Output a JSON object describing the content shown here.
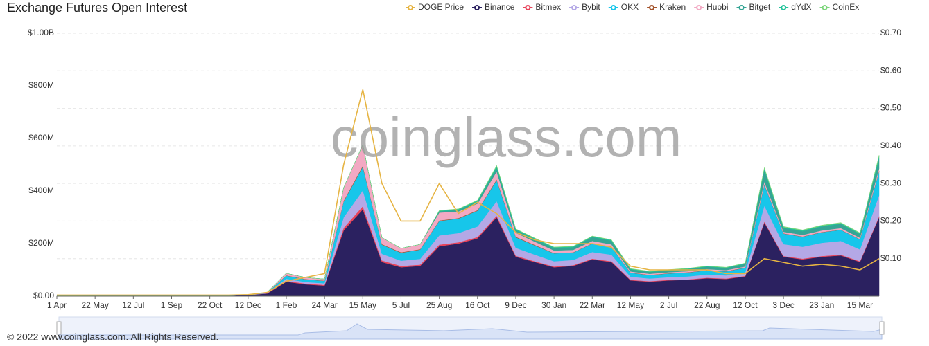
{
  "chart_data": {
    "type": "area",
    "stacked": true,
    "title": "Exchange  Futures Open Interest",
    "watermark": "coinglass.com",
    "footer": "© 2022 www.coinglass.com. All Rights Reserved.",
    "categories": [
      "1 Apr",
      null,
      "22 May",
      null,
      "12 Jul",
      null,
      "1 Sep",
      null,
      "22 Oct",
      null,
      "12 Dec",
      null,
      "1 Feb",
      null,
      "24 Mar",
      null,
      "15 May",
      null,
      "5 Jul",
      null,
      "25 Aug",
      null,
      "16 Oct",
      null,
      "9 Dec",
      null,
      "30 Jan",
      null,
      "22 Mar",
      null,
      "12 May",
      null,
      "2 Jul",
      null,
      "22 Aug",
      null,
      "12 Oct",
      null,
      "3 Dec",
      null,
      "23 Jan",
      null,
      "15 Mar",
      null
    ],
    "ylim": [
      0,
      1000
    ],
    "yticks": [
      {
        "value": 0,
        "label": "$0.00"
      },
      {
        "value": 200,
        "label": "$200M"
      },
      {
        "value": 400,
        "label": "$400M"
      },
      {
        "value": 600,
        "label": "$600M"
      },
      {
        "value": 800,
        "label": "$800M"
      },
      {
        "value": 1000,
        "label": "$1.00B"
      }
    ],
    "y2lim": [
      0,
      0.7
    ],
    "y2ticks": [
      {
        "value": 0.1,
        "label": "$0.10"
      },
      {
        "value": 0.2,
        "label": "$0.20"
      },
      {
        "value": 0.3,
        "label": "$0.30"
      },
      {
        "value": 0.4,
        "label": "$0.40"
      },
      {
        "value": 0.5,
        "label": "$0.50"
      },
      {
        "value": 0.6,
        "label": "$0.60"
      },
      {
        "value": 0.7,
        "label": "$0.70"
      }
    ],
    "grid": true,
    "legend": "top-right",
    "series": [
      {
        "name": "DOGE Price",
        "color": "#e6b443",
        "axis": "y2",
        "values": [
          0.003,
          0.003,
          0.003,
          0.003,
          0.003,
          0.003,
          0.003,
          0.003,
          0.003,
          0.003,
          0.004,
          0.01,
          0.04,
          0.05,
          0.06,
          0.35,
          0.55,
          0.3,
          0.2,
          0.2,
          0.3,
          0.22,
          0.25,
          0.22,
          0.17,
          0.15,
          0.14,
          0.14,
          0.14,
          0.13,
          0.08,
          0.07,
          0.07,
          0.07,
          0.07,
          0.06,
          0.06,
          0.1,
          0.09,
          0.08,
          0.085,
          0.08,
          0.07,
          0.1
        ]
      },
      {
        "name": "Binance",
        "color": "#2b2160",
        "values": [
          2,
          2,
          3,
          3,
          3,
          3,
          3,
          3,
          3,
          3,
          4,
          10,
          55,
          45,
          40,
          250,
          330,
          130,
          110,
          115,
          190,
          200,
          220,
          300,
          150,
          130,
          110,
          115,
          140,
          130,
          60,
          55,
          60,
          62,
          68,
          65,
          75,
          280,
          150,
          140,
          150,
          155,
          130,
          300
        ]
      },
      {
        "name": "Bitmex",
        "color": "#e8435a",
        "values": [
          0,
          0,
          0,
          0,
          0,
          0,
          0,
          0,
          0,
          0,
          0,
          1,
          3,
          3,
          3,
          10,
          12,
          6,
          5,
          5,
          6,
          5,
          5,
          6,
          4,
          3,
          3,
          3,
          3,
          3,
          2,
          2,
          2,
          2,
          2,
          2,
          2,
          4,
          3,
          3,
          3,
          3,
          3,
          4
        ]
      },
      {
        "name": "Bybit",
        "color": "#b4a8e6",
        "values": [
          0,
          0,
          0,
          0,
          0,
          0,
          0,
          0,
          0,
          0,
          0,
          1,
          8,
          6,
          6,
          40,
          60,
          25,
          20,
          22,
          35,
          35,
          40,
          55,
          30,
          25,
          20,
          20,
          25,
          25,
          12,
          10,
          10,
          11,
          12,
          12,
          14,
          60,
          45,
          45,
          50,
          52,
          45,
          80
        ]
      },
      {
        "name": "OKX",
        "color": "#17c6ea",
        "values": [
          0,
          0,
          0,
          0,
          0,
          0,
          0,
          0,
          0,
          0,
          0,
          2,
          12,
          10,
          9,
          60,
          90,
          35,
          30,
          35,
          55,
          55,
          60,
          80,
          40,
          35,
          30,
          28,
          32,
          30,
          15,
          13,
          14,
          15,
          16,
          15,
          17,
          80,
          40,
          38,
          40,
          42,
          38,
          90
        ]
      },
      {
        "name": "Kraken",
        "color": "#a4532b",
        "values": [
          0,
          0,
          0,
          0,
          0,
          0,
          0,
          0,
          0,
          0,
          0,
          0,
          1,
          1,
          1,
          3,
          4,
          2,
          2,
          2,
          2,
          2,
          2,
          3,
          2,
          2,
          1,
          1,
          1,
          1,
          1,
          1,
          1,
          1,
          1,
          1,
          1,
          2,
          1,
          1,
          1,
          1,
          1,
          2
        ]
      },
      {
        "name": "Huobi",
        "color": "#f2a9c3",
        "values": [
          0,
          0,
          0,
          0,
          0,
          0,
          0,
          0,
          0,
          0,
          0,
          1,
          8,
          6,
          6,
          50,
          80,
          25,
          15,
          18,
          30,
          25,
          25,
          30,
          15,
          12,
          10,
          9,
          9,
          8,
          4,
          4,
          4,
          4,
          4,
          4,
          4,
          10,
          6,
          6,
          6,
          6,
          5,
          10
        ]
      },
      {
        "name": "Bitget",
        "color": "#35a595",
        "values": [
          0,
          0,
          0,
          0,
          0,
          0,
          0,
          0,
          0,
          0,
          0,
          0,
          0,
          0,
          0,
          0,
          0,
          0,
          0,
          0,
          5,
          6,
          8,
          15,
          10,
          10,
          9,
          10,
          15,
          14,
          8,
          7,
          7,
          8,
          9,
          8,
          10,
          45,
          15,
          14,
          15,
          16,
          14,
          40
        ]
      },
      {
        "name": "dYdX",
        "color": "#23c39a",
        "values": [
          0,
          0,
          0,
          0,
          0,
          0,
          0,
          0,
          0,
          0,
          0,
          0,
          0,
          0,
          0,
          0,
          0,
          0,
          0,
          0,
          2,
          3,
          4,
          6,
          4,
          3,
          3,
          3,
          3,
          3,
          2,
          2,
          2,
          2,
          2,
          2,
          2,
          5,
          3,
          3,
          3,
          3,
          3,
          6
        ]
      },
      {
        "name": "CoinEx",
        "color": "#7dd67c",
        "values": [
          0,
          0,
          0,
          0,
          0,
          0,
          0,
          0,
          0,
          0,
          0,
          0,
          0,
          0,
          0,
          0,
          0,
          0,
          0,
          0,
          1,
          1,
          1,
          2,
          1,
          1,
          1,
          1,
          1,
          1,
          1,
          1,
          1,
          1,
          1,
          1,
          1,
          3,
          2,
          2,
          2,
          2,
          2,
          4
        ]
      }
    ]
  }
}
